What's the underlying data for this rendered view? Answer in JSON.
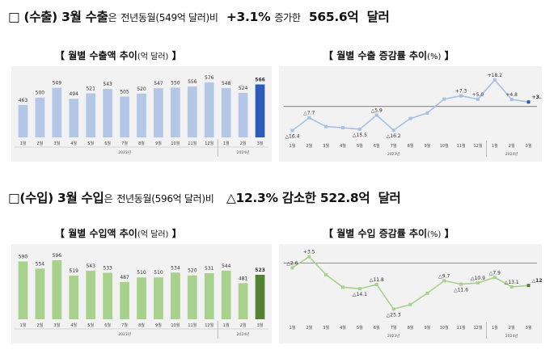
{
  "export_headline": {
    "box": "□",
    "label": "(수출)",
    "month": "3월",
    "subject": "수출",
    "particle": "은",
    "comparison": "전년동월",
    "reference": "(549억 달러)",
    "suffix": "비",
    "rate": "+3.1%",
    "verb": "증가한",
    "amount": "565.6억",
    "currency": "달러"
  },
  "import_headline": {
    "box": "□",
    "label": "(수입)",
    "month": "3월",
    "subject": "수입",
    "particle": "은",
    "comparison": "전년동월",
    "reference": "(596억 달러)",
    "suffix": "비",
    "rate": "△12.3%",
    "verb": "감소한",
    "amount": "522.8억",
    "currency": "달러"
  },
  "chart_titles": {
    "export_amount": {
      "open": "【",
      "text": "월별 수출액 추이",
      "unit": "(억 달러)",
      "close": "】"
    },
    "export_growth": {
      "open": "【",
      "text": "월별 수출 증감률 추이",
      "unit": "(%)",
      "close": "】"
    },
    "import_amount": {
      "open": "【",
      "text": "월별 수입액 추이",
      "unit": "(억 달러)",
      "close": "】"
    },
    "import_growth": {
      "open": "【",
      "text": "월별 수입 증감률 추이",
      "unit": "(%)",
      "close": "】"
    }
  },
  "colors": {
    "export_bar": "#b4c7e7",
    "export_bar_current": "#2e5bb8",
    "import_bar": "#a9d18e",
    "import_bar_current": "#538135",
    "export_line": "#a6c0e6",
    "export_point_current": "#2e5bb8",
    "import_line": "#a9d18e",
    "import_point_current": "#538135",
    "plot_bg": "#f2f2f2"
  },
  "chart_data": [
    {
      "id": "export_amount",
      "type": "bar",
      "title": "월별 수출액 추이(억 달러)",
      "categories": [
        "1월",
        "2월",
        "3월",
        "4월",
        "5월",
        "6월",
        "7월",
        "8월",
        "9월",
        "10월",
        "11월",
        "12월",
        "1월",
        "2월",
        "3월"
      ],
      "values": [
        463,
        500,
        549,
        494,
        521,
        543,
        505,
        520,
        547,
        550,
        556,
        576,
        548,
        524,
        566
      ],
      "data_labels": [
        "463",
        "500",
        "549",
        "494",
        "521",
        "543",
        "505",
        "520",
        "547",
        "550",
        "556",
        "576",
        "548",
        "524",
        "566"
      ],
      "year_labels": [
        "2023년",
        "2024년"
      ],
      "highlight_last": true
    },
    {
      "id": "export_growth",
      "type": "line",
      "title": "월별 수출 증감률 추이(%)",
      "categories": [
        "1월",
        "2월",
        "3월",
        "4월",
        "5월",
        "6월",
        "7월",
        "8월",
        "9월",
        "10월",
        "11월",
        "12월",
        "1월",
        "2월",
        "3월"
      ],
      "values": [
        -16.4,
        -7.7,
        -13.7,
        -14.5,
        -15.5,
        -5.9,
        -16.2,
        -8.2,
        -4.4,
        5.1,
        7.3,
        5.0,
        18.2,
        4.8,
        3.1
      ],
      "data_labels": [
        "△16.4",
        "△7.7",
        "",
        "",
        "△15.5",
        "△5.9",
        "△16.2",
        "",
        "",
        "",
        "+7.3",
        "+5.0",
        "+18.2",
        "+4.8",
        "+3.1"
      ],
      "year_labels": [
        "2023년",
        "2024년"
      ],
      "zero_line": true,
      "highlight_last": true
    },
    {
      "id": "import_amount",
      "type": "bar",
      "title": "월별 수입액 추이(억 달러)",
      "categories": [
        "1월",
        "2월",
        "3월",
        "4월",
        "5월",
        "6월",
        "7월",
        "8월",
        "9월",
        "10월",
        "11월",
        "12월",
        "1월",
        "2월",
        "3월"
      ],
      "values": [
        590,
        554,
        596,
        519,
        543,
        533,
        487,
        510,
        510,
        534,
        520,
        531,
        544,
        481,
        523
      ],
      "data_labels": [
        "590",
        "554",
        "596",
        "519",
        "543",
        "533",
        "487",
        "510",
        "510",
        "534",
        "520",
        "531",
        "544",
        "481",
        "523"
      ],
      "year_labels": [
        "2023년",
        "2024년"
      ],
      "highlight_last": true
    },
    {
      "id": "import_growth",
      "type": "line",
      "title": "월별 수입 증감률 추이(%)",
      "categories": [
        "1월",
        "2월",
        "3월",
        "4월",
        "5월",
        "6월",
        "7월",
        "8월",
        "9월",
        "10월",
        "11월",
        "12월",
        "1월",
        "2월",
        "3월"
      ],
      "values": [
        -2.6,
        3.5,
        -6.4,
        -13.3,
        -14.1,
        -11.8,
        -25.3,
        -22.8,
        -16.6,
        -9.7,
        -11.6,
        -10.9,
        -7.9,
        -13.1,
        -12.3
      ],
      "data_labels": [
        "△2.6",
        "+3.5",
        "",
        "",
        "△14.1",
        "△11.8",
        "△25.3",
        "",
        "",
        "△9.7",
        "△11.6",
        "△10.9",
        "△7.9",
        "△13.1",
        "△12.3"
      ],
      "year_labels": [
        "2023년",
        "2024년"
      ],
      "zero_line": true,
      "highlight_last": true
    }
  ]
}
